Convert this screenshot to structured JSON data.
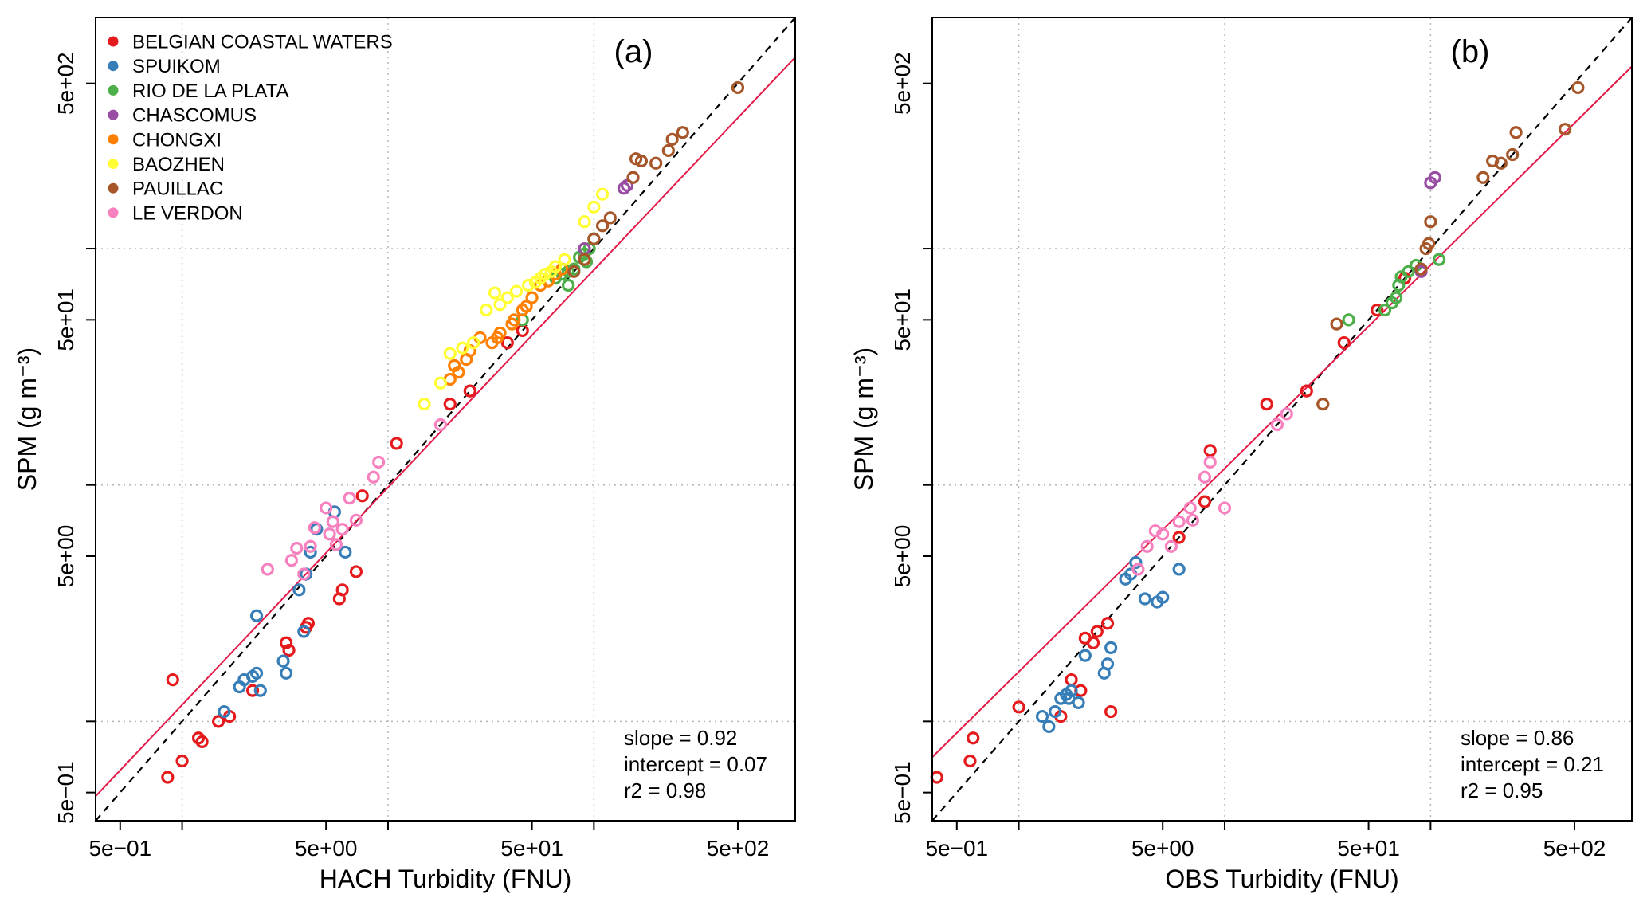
{
  "chart_data": [
    {
      "type": "scatter",
      "panel_label": "(a)",
      "xlabel": "HACH Turbidity (FNU)",
      "ylabel": "SPM (g m⁻³)",
      "x_scale": "log10",
      "y_scale": "log10",
      "xlim": [
        0.38,
        950
      ],
      "ylim": [
        0.38,
        950
      ],
      "x_ticks": [
        "5e−01",
        "5e+00",
        "5e+01",
        "5e+02"
      ],
      "x_tick_values": [
        0.5,
        5,
        50,
        500
      ],
      "y_ticks": [
        "5e−01",
        "5e+00",
        "5e+01",
        "5e+02"
      ],
      "y_tick_values": [
        0.5,
        5,
        50,
        500
      ],
      "grid": true,
      "reference_line": "1:1 (dashed black)",
      "fit": {
        "slope": 0.92,
        "intercept": 0.07,
        "color": "#e41a4a"
      },
      "stats": [
        "slope = 0.92",
        "intercept = 0.07",
        "r2 = 0.98"
      ],
      "legend": {
        "placement": "top-left",
        "entries": [
          {
            "label": "BELGIAN COASTAL WATERS",
            "color": "#e41a1c"
          },
          {
            "label": "SPUIKOM",
            "color": "#377eb8"
          },
          {
            "label": "RIO DE LA PLATA",
            "color": "#4daf4a"
          },
          {
            "label": "CHASCOMUS",
            "color": "#984ea3"
          },
          {
            "label": "CHONGXI",
            "color": "#ff7f00"
          },
          {
            "label": "BAOZHEN",
            "color": "#ffff33"
          },
          {
            "label": "PAUILLAC",
            "color": "#a65628"
          },
          {
            "label": "LE VERDON",
            "color": "#f781bf"
          }
        ]
      },
      "series": [
        {
          "name": "BELGIAN COASTAL WATERS",
          "color": "#e41a1c",
          "points": [
            [
              0.9,
              1.5
            ],
            [
              0.85,
              0.58
            ],
            [
              1.0,
              0.68
            ],
            [
              1.2,
              0.85
            ],
            [
              1.25,
              0.82
            ],
            [
              1.5,
              1.0
            ],
            [
              1.7,
              1.05
            ],
            [
              2.2,
              1.35
            ],
            [
              3.2,
              2.15
            ],
            [
              3.3,
              2.0
            ],
            [
              4.0,
              2.5
            ],
            [
              4.1,
              2.6
            ],
            [
              6.0,
              3.6
            ],
            [
              5.8,
              3.3
            ],
            [
              7.0,
              4.3
            ],
            [
              7.5,
              9.0
            ],
            [
              11,
              15
            ],
            [
              20,
              22
            ],
            [
              25,
              25
            ],
            [
              38,
              40
            ],
            [
              45,
              45
            ]
          ]
        },
        {
          "name": "SPUIKOM",
          "color": "#377eb8",
          "points": [
            [
              1.6,
              1.1
            ],
            [
              1.9,
              1.4
            ],
            [
              2.0,
              1.5
            ],
            [
              2.2,
              1.55
            ],
            [
              2.3,
              1.6
            ],
            [
              2.4,
              1.35
            ],
            [
              2.3,
              2.8
            ],
            [
              3.1,
              1.8
            ],
            [
              3.2,
              1.6
            ],
            [
              3.9,
              2.4
            ],
            [
              3.7,
              3.6
            ],
            [
              4.0,
              4.2
            ],
            [
              4.2,
              5.2
            ],
            [
              4.5,
              6.5
            ],
            [
              5.5,
              7.7
            ],
            [
              6.2,
              5.2
            ]
          ]
        },
        {
          "name": "RIO DE LA PLATA",
          "color": "#4daf4a",
          "points": [
            [
              45,
              50
            ],
            [
              65,
              75
            ],
            [
              70,
              78
            ],
            [
              75,
              70
            ],
            [
              80,
              82
            ],
            [
              85,
              92
            ],
            [
              90,
              95
            ],
            [
              95,
              100
            ],
            [
              92,
              88
            ],
            [
              100,
              110
            ],
            [
              75,
              80
            ]
          ]
        },
        {
          "name": "CHASCOMUS",
          "color": "#984ea3",
          "points": [
            [
              140,
              180
            ],
            [
              145,
              185
            ],
            [
              90,
              100
            ]
          ]
        },
        {
          "name": "CHONGXI",
          "color": "#ff7f00",
          "points": [
            [
              20,
              28
            ],
            [
              21,
              32
            ],
            [
              22,
              30
            ],
            [
              24,
              34
            ],
            [
              25,
              37
            ],
            [
              28,
              42
            ],
            [
              32,
              40
            ],
            [
              34,
              42
            ],
            [
              35,
              44
            ],
            [
              40,
              48
            ],
            [
              41,
              50
            ],
            [
              45,
              55
            ],
            [
              47,
              57
            ],
            [
              50,
              62
            ],
            [
              55,
              70
            ],
            [
              60,
              73
            ],
            [
              65,
              78
            ],
            [
              70,
              82
            ]
          ]
        },
        {
          "name": "BAOZHEN",
          "color": "#ffff33",
          "points": [
            [
              15,
              22
            ],
            [
              18,
              27
            ],
            [
              20,
              36
            ],
            [
              23,
              38
            ],
            [
              26,
              40
            ],
            [
              30,
              55
            ],
            [
              33,
              65
            ],
            [
              35,
              58
            ],
            [
              38,
              62
            ],
            [
              42,
              66
            ],
            [
              48,
              70
            ],
            [
              52,
              72
            ],
            [
              55,
              75
            ],
            [
              58,
              78
            ],
            [
              62,
              80
            ],
            [
              65,
              84
            ],
            [
              72,
              90
            ],
            [
              90,
              130
            ],
            [
              100,
              150
            ],
            [
              110,
              170
            ]
          ]
        },
        {
          "name": "PAUILLAC",
          "color": "#a65628",
          "points": [
            [
              80,
              80
            ],
            [
              90,
              90
            ],
            [
              100,
              110
            ],
            [
              110,
              125
            ],
            [
              120,
              135
            ],
            [
              155,
              200
            ],
            [
              160,
              240
            ],
            [
              170,
              235
            ],
            [
              200,
              230
            ],
            [
              230,
              260
            ],
            [
              240,
              290
            ],
            [
              270,
              310
            ],
            [
              500,
              480
            ]
          ]
        },
        {
          "name": "LE VERDON",
          "color": "#f781bf",
          "points": [
            [
              18,
              18
            ],
            [
              2.6,
              4.4
            ],
            [
              3.4,
              4.8
            ],
            [
              3.6,
              5.4
            ],
            [
              3.9,
              4.2
            ],
            [
              4.2,
              5.5
            ],
            [
              4.4,
              6.6
            ],
            [
              5.0,
              8.0
            ],
            [
              5.2,
              6.2
            ],
            [
              5.4,
              7.0
            ],
            [
              5.6,
              5.6
            ],
            [
              6.0,
              6.5
            ],
            [
              6.5,
              8.8
            ],
            [
              7.0,
              7.1
            ],
            [
              8.5,
              10.8
            ],
            [
              9.0,
              12.5
            ]
          ]
        }
      ]
    },
    {
      "type": "scatter",
      "panel_label": "(b)",
      "xlabel": "OBS Turbidity (FNU)",
      "ylabel": "SPM (g m⁻³)",
      "x_scale": "log10",
      "y_scale": "log10",
      "xlim": [
        0.38,
        950
      ],
      "ylim": [
        0.38,
        950
      ],
      "x_ticks": [
        "5e−01",
        "5e+00",
        "5e+01",
        "5e+02"
      ],
      "x_tick_values": [
        0.5,
        5,
        50,
        500
      ],
      "y_ticks": [
        "5e−01",
        "5e+00",
        "5e+01",
        "5e+02"
      ],
      "y_tick_values": [
        0.5,
        5,
        50,
        500
      ],
      "grid": true,
      "reference_line": "1:1 (dashed black)",
      "fit": {
        "slope": 0.86,
        "intercept": 0.21,
        "color": "#e41a4a"
      },
      "stats": [
        "slope = 0.86",
        "intercept = 0.21",
        "r2 = 0.95"
      ],
      "series": [
        {
          "name": "BELGIAN COASTAL WATERS",
          "color": "#e41a1c",
          "points": [
            [
              0.4,
              0.58
            ],
            [
              0.58,
              0.68
            ],
            [
              0.6,
              0.85
            ],
            [
              1.0,
              1.15
            ],
            [
              1.6,
              1.05
            ],
            [
              1.8,
              1.5
            ],
            [
              2.0,
              1.35
            ],
            [
              2.1,
              2.25
            ],
            [
              2.3,
              2.15
            ],
            [
              2.4,
              2.4
            ],
            [
              2.7,
              2.6
            ],
            [
              2.8,
              1.1
            ],
            [
              6.0,
              6.0
            ],
            [
              8.0,
              8.5
            ],
            [
              8.5,
              14
            ],
            [
              16,
              22
            ],
            [
              25,
              25
            ],
            [
              38,
              40
            ],
            [
              55,
              55
            ],
            [
              75,
              75
            ]
          ]
        },
        {
          "name": "SPUIKOM",
          "color": "#377eb8",
          "points": [
            [
              1.3,
              1.05
            ],
            [
              1.4,
              0.95
            ],
            [
              1.5,
              1.1
            ],
            [
              1.6,
              1.25
            ],
            [
              1.7,
              1.3
            ],
            [
              1.75,
              1.25
            ],
            [
              1.8,
              1.35
            ],
            [
              1.95,
              1.2
            ],
            [
              2.1,
              1.9
            ],
            [
              2.6,
              1.6
            ],
            [
              2.7,
              1.75
            ],
            [
              2.8,
              2.05
            ],
            [
              3.3,
              4.0
            ],
            [
              3.5,
              4.2
            ],
            [
              3.7,
              4.7
            ],
            [
              4.1,
              3.3
            ],
            [
              4.7,
              3.2
            ],
            [
              5.0,
              3.35
            ],
            [
              6.0,
              4.4
            ]
          ]
        },
        {
          "name": "RIO DE LA PLATA",
          "color": "#4daf4a",
          "points": [
            [
              40,
              50
            ],
            [
              60,
              55
            ],
            [
              65,
              59
            ],
            [
              68,
              62
            ],
            [
              70,
              70
            ],
            [
              72,
              76
            ],
            [
              78,
              80
            ],
            [
              85,
              85
            ],
            [
              110,
              90
            ]
          ]
        },
        {
          "name": "CHASCOMUS",
          "color": "#984ea3",
          "points": [
            [
              100,
              190
            ],
            [
              105,
              200
            ],
            [
              90,
              80
            ]
          ]
        },
        {
          "name": "PAUILLAC",
          "color": "#a65628",
          "points": [
            [
              30,
              22
            ],
            [
              35,
              48
            ],
            [
              90,
              82
            ],
            [
              95,
              100
            ],
            [
              98,
              105
            ],
            [
              100,
              130
            ],
            [
              180,
              200
            ],
            [
              200,
              235
            ],
            [
              220,
              230
            ],
            [
              250,
              250
            ],
            [
              260,
              310
            ],
            [
              450,
              320
            ],
            [
              520,
              480
            ]
          ]
        },
        {
          "name": "LE VERDON",
          "color": "#f781bf",
          "points": [
            [
              18,
              18
            ],
            [
              20,
              20
            ],
            [
              3.8,
              4.4
            ],
            [
              4.2,
              5.5
            ],
            [
              4.6,
              6.4
            ],
            [
              5.0,
              6.2
            ],
            [
              5.5,
              5.5
            ],
            [
              6.0,
              7.0
            ],
            [
              6.8,
              8.0
            ],
            [
              7.0,
              7.1
            ],
            [
              8.0,
              10.8
            ],
            [
              8.5,
              12.5
            ],
            [
              10,
              8.0
            ]
          ]
        }
      ]
    }
  ]
}
